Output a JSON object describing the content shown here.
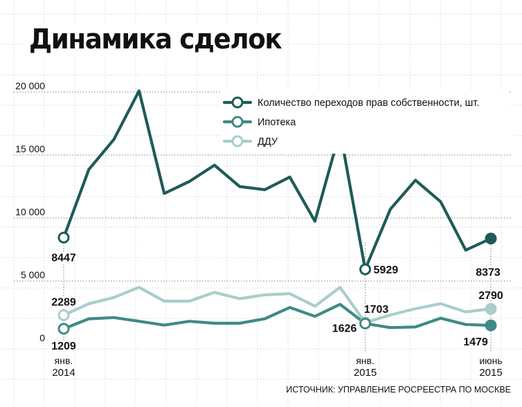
{
  "title": "Динамика сделок",
  "source": "ИСТОЧНИК: УПРАВЛЕНИЕ РОСРЕЕСТРА ПО МОСКВЕ",
  "colors": {
    "deals": "#1e5b58",
    "mortgage": "#3f8a86",
    "ddu": "#a9cdcb",
    "grid": "#9a9a9a",
    "text": "#111111"
  },
  "chart_data": {
    "type": "line",
    "title": "Динамика сделок",
    "ylim": [
      0,
      20000
    ],
    "yticks": [
      0,
      5000,
      10000,
      15000,
      20000
    ],
    "ytick_labels": [
      "0",
      "5 000",
      "10 000",
      "15 000",
      "20 000"
    ],
    "x": [
      "2014-01",
      "2014-02",
      "2014-03",
      "2014-04",
      "2014-05",
      "2014-06",
      "2014-07",
      "2014-08",
      "2014-09",
      "2014-10",
      "2014-11",
      "2014-12",
      "2015-01",
      "2015-02",
      "2015-03",
      "2015-04",
      "2015-05",
      "2015-06"
    ],
    "xtick_labels": [
      {
        "x": "2014-01",
        "month": "янв.",
        "year": "2014"
      },
      {
        "x": "2015-01",
        "month": "янв.",
        "year": "2015"
      },
      {
        "x": "2015-06",
        "month": "июнь",
        "year": "2015"
      }
    ],
    "legend_position": "top-right",
    "series": [
      {
        "name": "Количество переходов прав собственности, шт.",
        "key": "deals",
        "values": [
          8447,
          13850,
          16250,
          20100,
          11950,
          12900,
          14200,
          12500,
          12250,
          13250,
          9750,
          16900,
          5929,
          10700,
          13000,
          11300,
          7450,
          8373
        ]
      },
      {
        "name": "Ипотека",
        "key": "mortgage",
        "values": [
          1209,
          2000,
          2100,
          1800,
          1500,
          1800,
          1650,
          1650,
          2000,
          2900,
          2200,
          3150,
          1626,
          1300,
          1350,
          2050,
          1550,
          1479
        ]
      },
      {
        "name": "ДДУ",
        "key": "ddu",
        "values": [
          2289,
          3200,
          3700,
          4500,
          3400,
          3400,
          4100,
          3600,
          3900,
          4000,
          3000,
          4500,
          1703,
          2300,
          2800,
          3200,
          2550,
          2790
        ]
      }
    ],
    "annotations": [
      {
        "series": "deals",
        "x": "2014-01",
        "text": "8447"
      },
      {
        "series": "deals",
        "x": "2015-01",
        "text": "5929"
      },
      {
        "series": "deals",
        "x": "2015-06",
        "text": "8373"
      },
      {
        "series": "ddu",
        "x": "2014-01",
        "text": "2289"
      },
      {
        "series": "ddu",
        "x": "2015-01",
        "text": "1703"
      },
      {
        "series": "ddu",
        "x": "2015-06",
        "text": "2790"
      },
      {
        "series": "mortgage",
        "x": "2014-01",
        "text": "1209"
      },
      {
        "series": "mortgage",
        "x": "2015-01",
        "text": "1626"
      },
      {
        "series": "mortgage",
        "x": "2015-06",
        "text": "1479"
      }
    ]
  }
}
